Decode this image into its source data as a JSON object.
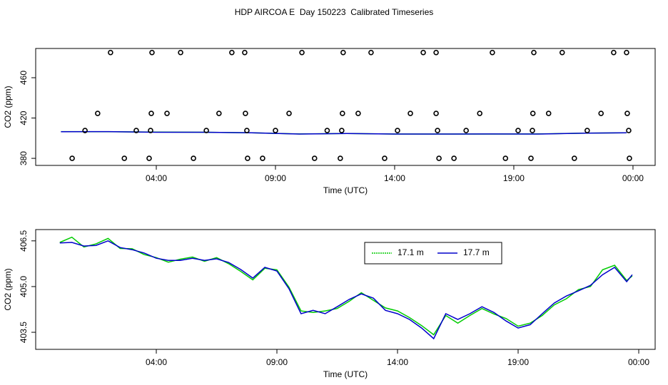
{
  "chart_data": [
    {
      "type": "scatter",
      "title": "HDP AIRCOA E  Day 150223  Calibrated Timeseries",
      "x_label": "Time (UTC)",
      "y_label": "CO2 (ppm)",
      "x": [
        2.08,
        3.82,
        5.02,
        7.17,
        7.71,
        10.11,
        11.84,
        13.01,
        15.2,
        15.74,
        18.1,
        19.84,
        21.03,
        23.19,
        23.73,
        1.54,
        3.79,
        4.45,
        6.63,
        7.74,
        9.57,
        11.81,
        12.47,
        14.66,
        15.74,
        17.57,
        19.8,
        20.46,
        22.66,
        23.76,
        1.01,
        3.16,
        3.76,
        6.1,
        7.8,
        9.0,
        11.17,
        11.78,
        14.12,
        15.8,
        17.0,
        19.18,
        19.78,
        22.08,
        23.82,
        0.47,
        2.66,
        3.7,
        5.56,
        7.83,
        8.46,
        10.64,
        11.72,
        13.58,
        15.86,
        16.49,
        18.65,
        19.72,
        21.54,
        23.85
      ],
      "values": [
        485,
        485,
        485,
        485,
        485,
        485,
        485,
        485,
        485,
        485,
        485,
        485,
        485,
        485,
        485,
        424.6,
        424.6,
        424.6,
        424.6,
        424.6,
        424.6,
        424.6,
        424.6,
        424.6,
        424.6,
        424.6,
        424.6,
        424.6,
        424.6,
        424.6,
        407.6,
        407.6,
        407.6,
        407.6,
        407.6,
        407.6,
        407.6,
        407.6,
        407.6,
        407.6,
        407.6,
        407.6,
        407.6,
        407.6,
        407.6,
        380,
        380,
        380,
        380,
        380,
        380,
        380,
        380,
        380,
        380,
        380,
        380,
        380,
        380,
        380
      ],
      "marker_color": "#000000",
      "series": [
        {
          "color": "#00cc00",
          "x": [
            0,
            2,
            4,
            6,
            8,
            10,
            12,
            14,
            16,
            18,
            20,
            22,
            23.73
          ],
          "values": [
            406.5,
            406.4,
            406.0,
            405.9,
            405.3,
            404.2,
            404.6,
            404.1,
            404.1,
            404.1,
            404.2,
            405.0,
            405.4
          ]
        },
        {
          "color": "#0000cc",
          "x": [
            0,
            2,
            4,
            6,
            8,
            10,
            12,
            14,
            16,
            18,
            20,
            22,
            23.73
          ],
          "values": [
            406.4,
            406.5,
            405.9,
            405.9,
            405.3,
            404.1,
            404.6,
            404.1,
            404.1,
            404.2,
            404.1,
            405.0,
            405.4
          ]
        }
      ],
      "xlim": [
        -1.06,
        24.93
      ],
      "ylim": [
        373,
        489
      ],
      "xticks": [
        {
          "value": 4,
          "label": "04:00"
        },
        {
          "value": 9,
          "label": "09:00"
        },
        {
          "value": 14,
          "label": "14:00"
        },
        {
          "value": 19,
          "label": "19:00"
        },
        {
          "value": 24,
          "label": "00:00"
        }
      ],
      "yticks": [
        380,
        420,
        460
      ]
    },
    {
      "type": "line",
      "x_label": "Time (UTC)",
      "y_label": "CO2 (ppm)",
      "x": [
        0,
        0.5,
        1,
        1.5,
        2,
        2.5,
        3,
        3.5,
        4,
        4.5,
        5,
        5.5,
        6,
        6.5,
        7,
        7.5,
        8,
        8.5,
        9,
        9.5,
        10,
        10.5,
        11,
        11.5,
        12,
        12.5,
        13,
        13.5,
        14,
        14.5,
        15,
        15.5,
        16,
        16.5,
        17,
        17.5,
        18,
        18.5,
        19,
        19.5,
        20,
        20.5,
        21,
        21.5,
        22,
        22.5,
        23,
        23.5,
        23.73
      ],
      "series": [
        {
          "name": "17.1 m",
          "color": "#00cc00",
          "values": [
            406.45,
            406.62,
            406.3,
            406.4,
            406.58,
            406.25,
            406.24,
            406.05,
            405.95,
            405.8,
            405.9,
            405.97,
            405.83,
            405.95,
            405.75,
            405.5,
            405.22,
            405.6,
            405.55,
            404.98,
            404.2,
            404.15,
            404.2,
            404.28,
            404.52,
            404.8,
            404.55,
            404.3,
            404.2,
            403.98,
            403.72,
            403.42,
            404.05,
            403.8,
            404.05,
            404.28,
            404.1,
            403.95,
            403.7,
            403.8,
            404.05,
            404.4,
            404.6,
            404.9,
            405.0,
            405.55,
            405.7,
            405.2,
            405.35
          ]
        },
        {
          "name": "17.7 m",
          "color": "#0000cc",
          "values": [
            406.43,
            406.45,
            406.33,
            406.35,
            406.5,
            406.28,
            406.21,
            406.1,
            405.93,
            405.86,
            405.86,
            405.93,
            405.86,
            405.91,
            405.79,
            405.56,
            405.28,
            405.63,
            405.51,
            404.93,
            404.11,
            404.22,
            404.11,
            404.34,
            404.58,
            404.76,
            404.62,
            404.22,
            404.11,
            403.92,
            403.64,
            403.29,
            404.11,
            403.92,
            404.11,
            404.34,
            404.15,
            403.87,
            403.64,
            403.75,
            404.11,
            404.46,
            404.69,
            404.86,
            405.04,
            405.39,
            405.63,
            405.16,
            405.39
          ]
        }
      ],
      "xlim": [
        -1.0,
        24.68
      ],
      "ylim": [
        402.94,
        406.87
      ],
      "xticks": [
        {
          "value": 4,
          "label": "04:00"
        },
        {
          "value": 9,
          "label": "09:00"
        },
        {
          "value": 14,
          "label": "14:00"
        },
        {
          "value": 19,
          "label": "19:00"
        },
        {
          "value": 24,
          "label": "00:00"
        }
      ],
      "yticks": [
        403.5,
        {
          "value": 405,
          "label": "405.0"
        },
        406.5
      ],
      "legend": "top-right"
    }
  ]
}
